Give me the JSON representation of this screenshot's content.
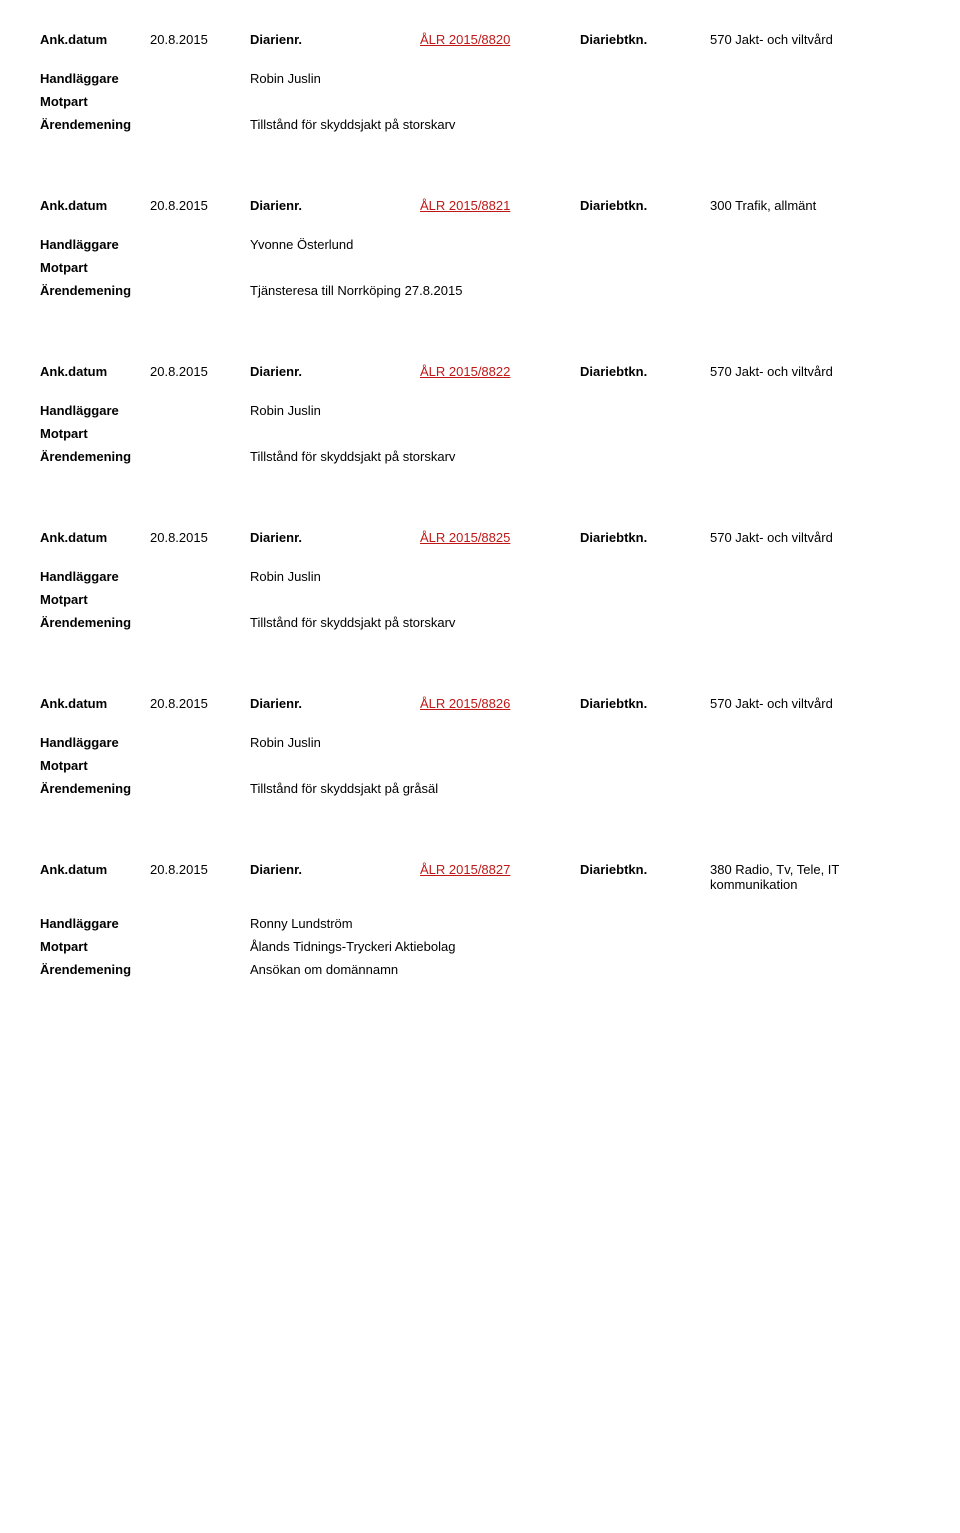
{
  "labels": {
    "ank_datum": "Ank.datum",
    "diarienr": "Diarienr.",
    "diariebtkn": "Diariebtkn.",
    "handlaggare": "Handläggare",
    "motpart": "Motpart",
    "arendemening": "Ärendemening"
  },
  "records": [
    {
      "date": "20.8.2015",
      "ref": "ÅLR 2015/8820",
      "category": "570 Jakt- och viltvård",
      "handlaggare": "Robin Juslin",
      "motpart": "",
      "arendemening": "Tillstånd för skyddsjakt på storskarv"
    },
    {
      "date": "20.8.2015",
      "ref": "ÅLR 2015/8821",
      "category": "300 Trafik, allmänt",
      "handlaggare": "Yvonne Österlund",
      "motpart": "",
      "arendemening": "Tjänsteresa till Norrköping 27.8.2015"
    },
    {
      "date": "20.8.2015",
      "ref": "ÅLR 2015/8822",
      "category": "570 Jakt- och viltvård",
      "handlaggare": "Robin Juslin",
      "motpart": "",
      "arendemening": "Tillstånd för skyddsjakt på storskarv"
    },
    {
      "date": "20.8.2015",
      "ref": "ÅLR 2015/8825",
      "category": "570 Jakt- och viltvård",
      "handlaggare": "Robin Juslin",
      "motpart": "",
      "arendemening": "Tillstånd för skyddsjakt på storskarv"
    },
    {
      "date": "20.8.2015",
      "ref": "ÅLR 2015/8826",
      "category": "570 Jakt- och viltvård",
      "handlaggare": "Robin Juslin",
      "motpart": "",
      "arendemening": "Tillstånd för skyddsjakt på gråsäl"
    },
    {
      "date": "20.8.2015",
      "ref": "ÅLR 2015/8827",
      "category": "380 Radio, Tv, Tele, IT kommunikation",
      "handlaggare": "Ronny Lundström",
      "motpart": "Ålands Tidnings-Tryckeri Aktiebolag",
      "arendemening": "Ansökan om domännamn"
    }
  ]
}
